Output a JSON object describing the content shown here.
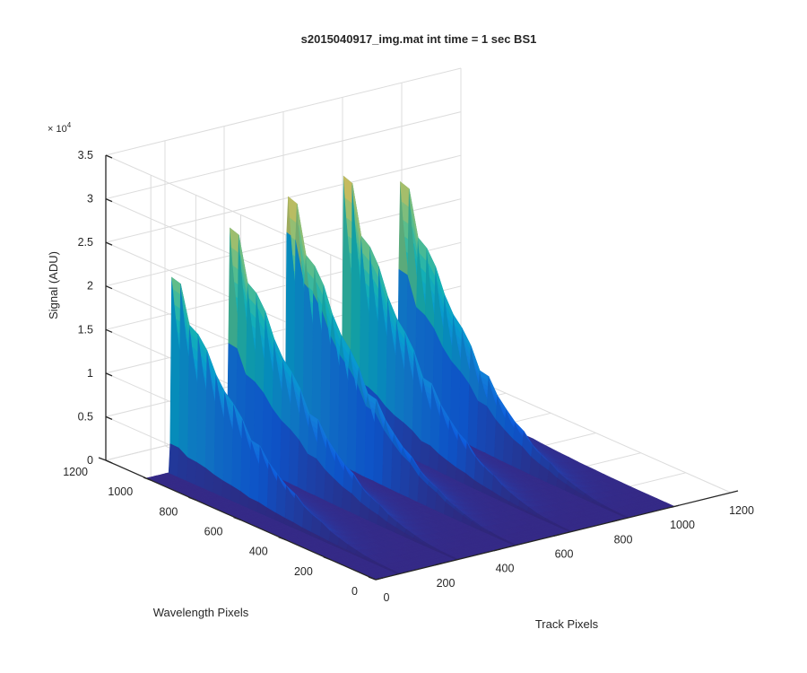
{
  "chart_data": {
    "type": "surface",
    "title": "s2015040917_img.mat int time = 1 sec   BS1",
    "xlabel": "Track Pixels",
    "ylabel": "Wavelength Pixels",
    "zlabel": "Signal (ADU)",
    "z_exponent_label": "× 10",
    "z_exponent": "4",
    "xlim": [
      0,
      1200
    ],
    "ylim": [
      0,
      1200
    ],
    "zlim": [
      0,
      35000
    ],
    "x_ticks": [
      0,
      200,
      400,
      600,
      800,
      1000,
      1200
    ],
    "y_ticks": [
      0,
      200,
      400,
      600,
      800,
      1000,
      1200
    ],
    "z_ticks": [
      0,
      5000,
      10000,
      15000,
      20000,
      25000,
      30000,
      35000
    ],
    "x_tick_labels": [
      "0",
      "200",
      "400",
      "600",
      "800",
      "1000",
      "1200"
    ],
    "y_tick_labels": [
      "0",
      "200",
      "400",
      "600",
      "800",
      "1000",
      "1200"
    ],
    "z_tick_labels": [
      "0",
      "0.5",
      "1",
      "1.5",
      "2",
      "2.5",
      "3",
      "3.5"
    ],
    "grid": true,
    "colormap": "parula",
    "surface_extent": {
      "track_max": 1010,
      "wavelength_max": 1020
    },
    "series": [
      {
        "track_center": 100,
        "peak_signal": 26000
      },
      {
        "track_center": 295,
        "peak_signal": 31000
      },
      {
        "track_center": 490,
        "peak_signal": 34500
      },
      {
        "track_center": 680,
        "peak_signal": 33500
      },
      {
        "track_center": 870,
        "peak_signal": 32000
      }
    ]
  }
}
